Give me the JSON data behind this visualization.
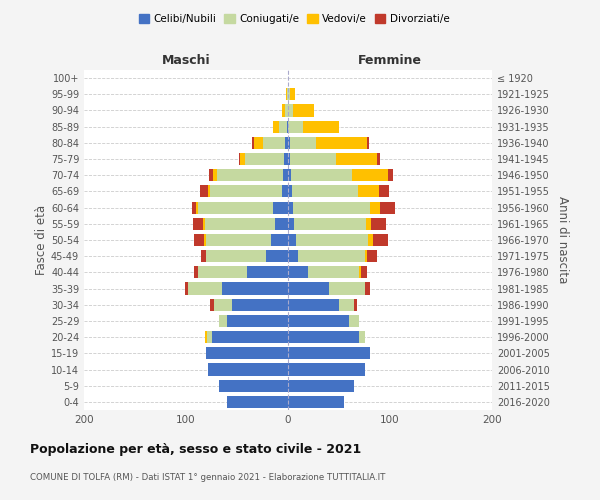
{
  "age_groups": [
    "0-4",
    "5-9",
    "10-14",
    "15-19",
    "20-24",
    "25-29",
    "30-34",
    "35-39",
    "40-44",
    "45-49",
    "50-54",
    "55-59",
    "60-64",
    "65-69",
    "70-74",
    "75-79",
    "80-84",
    "85-89",
    "90-94",
    "95-99",
    "100+"
  ],
  "birth_years": [
    "2016-2020",
    "2011-2015",
    "2006-2010",
    "2001-2005",
    "1996-2000",
    "1991-1995",
    "1986-1990",
    "1981-1985",
    "1976-1980",
    "1971-1975",
    "1966-1970",
    "1961-1965",
    "1956-1960",
    "1951-1955",
    "1946-1950",
    "1941-1945",
    "1936-1940",
    "1931-1935",
    "1926-1930",
    "1921-1925",
    "≤ 1920"
  ],
  "males": {
    "celibi": [
      60,
      68,
      78,
      80,
      75,
      60,
      55,
      65,
      40,
      22,
      17,
      13,
      15,
      6,
      5,
      4,
      3,
      1,
      0,
      0,
      0
    ],
    "coniugati": [
      0,
      0,
      0,
      0,
      4,
      8,
      18,
      33,
      48,
      58,
      63,
      68,
      73,
      70,
      65,
      38,
      22,
      8,
      3,
      1,
      0
    ],
    "vedovi": [
      0,
      0,
      0,
      0,
      2,
      0,
      0,
      0,
      0,
      0,
      2,
      2,
      2,
      2,
      4,
      5,
      8,
      6,
      3,
      1,
      0
    ],
    "divorziati": [
      0,
      0,
      0,
      0,
      0,
      0,
      3,
      3,
      4,
      5,
      10,
      10,
      4,
      8,
      3,
      1,
      2,
      0,
      0,
      0,
      0
    ]
  },
  "females": {
    "nubili": [
      55,
      65,
      75,
      80,
      70,
      60,
      50,
      40,
      20,
      10,
      8,
      6,
      5,
      4,
      3,
      2,
      2,
      0,
      0,
      0,
      0
    ],
    "coniugate": [
      0,
      0,
      0,
      0,
      5,
      10,
      15,
      35,
      50,
      65,
      70,
      70,
      75,
      65,
      60,
      45,
      25,
      15,
      5,
      2,
      0
    ],
    "vedove": [
      0,
      0,
      0,
      0,
      0,
      0,
      0,
      0,
      2,
      2,
      5,
      5,
      10,
      20,
      35,
      40,
      50,
      35,
      20,
      5,
      0
    ],
    "divorziate": [
      0,
      0,
      0,
      0,
      0,
      0,
      3,
      5,
      5,
      10,
      15,
      15,
      15,
      10,
      5,
      3,
      2,
      0,
      0,
      0,
      0
    ]
  },
  "colors": {
    "celibi_nubili": "#4472c4",
    "coniugati": "#c5d9a0",
    "vedovi": "#ffc000",
    "divorziati": "#c0392b"
  },
  "xlim": 200,
  "title": "Popolazione per età, sesso e stato civile - 2021",
  "subtitle": "COMUNE DI TOLFA (RM) - Dati ISTAT 1° gennaio 2021 - Elaborazione TUTTITALIA.IT",
  "ylabel_left": "Fasce di età",
  "ylabel_right": "Anni di nascita",
  "xlabel_maschi": "Maschi",
  "xlabel_femmine": "Femmine",
  "legend_labels": [
    "Celibi/Nubili",
    "Coniugati/e",
    "Vedovi/e",
    "Divorziati/e"
  ],
  "bg_color": "#f4f4f4",
  "plot_bg": "#ffffff"
}
